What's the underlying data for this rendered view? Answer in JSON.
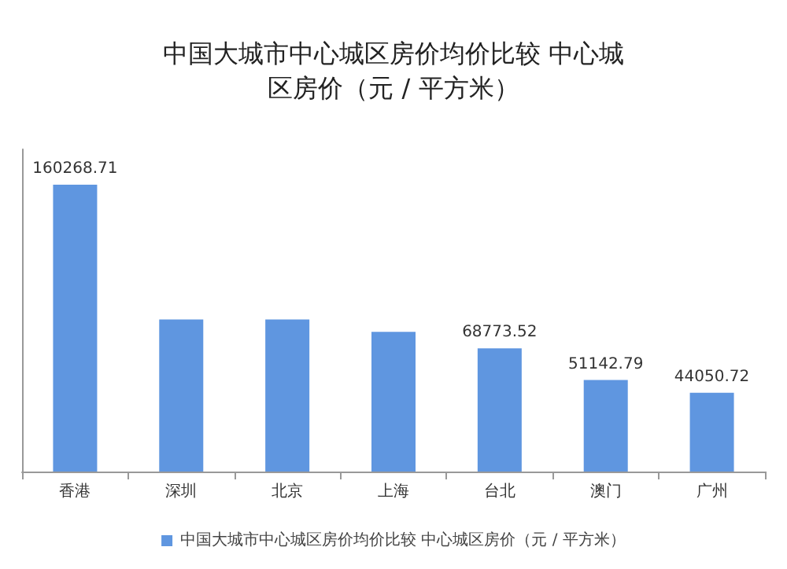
{
  "chart_data": {
    "type": "bar",
    "title": "中国大城市中心城区房价均价比较 中心城区房价（元 / 平方米）",
    "categories": [
      "香港",
      "深圳",
      "北京",
      "上海",
      "台北",
      "澳门",
      "广州"
    ],
    "series": [
      {
        "name": "中国大城市中心城区房价均价比较 中心城区房价（元 / 平方米）",
        "color": "#5f96e0",
        "values": [
          160268.71,
          85000,
          85000,
          78000,
          68773.52,
          51142.79,
          44050.72
        ],
        "value_labels": [
          "160268.71",
          null,
          null,
          null,
          "68773.52",
          "51142.79",
          "44050.72"
        ]
      }
    ],
    "legend": "bottom",
    "grid": false
  }
}
